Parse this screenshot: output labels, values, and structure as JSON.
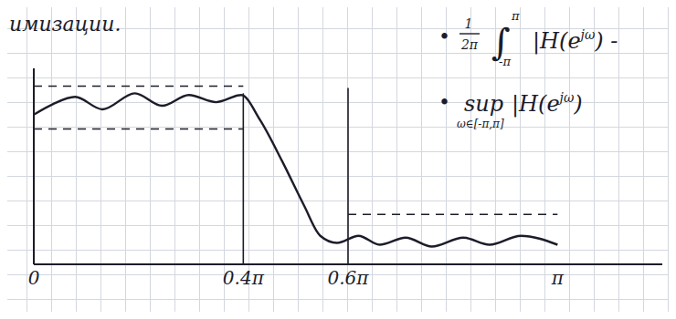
{
  "chart_data": {
    "type": "line",
    "title": "имизации.",
    "color": "#1c1c2a",
    "line_style": "solid",
    "tick_labels": "x",
    "x": [
      0,
      0.037,
      0.079,
      0.131,
      0.193,
      0.245,
      0.296,
      0.348,
      0.396,
      0.432,
      0.474,
      0.516,
      0.547,
      0.579,
      0.62,
      0.66,
      0.71,
      0.76,
      0.82,
      0.87,
      0.93,
      1.0
    ],
    "values": [
      0.84,
      0.9,
      0.94,
      0.87,
      0.96,
      0.89,
      0.95,
      0.91,
      0.95,
      0.81,
      0.58,
      0.33,
      0.16,
      0.12,
      0.16,
      0.11,
      0.15,
      0.1,
      0.15,
      0.11,
      0.16,
      0.11
    ],
    "xlim": [
      0,
      1.2
    ],
    "xticks": [
      0,
      {
        "value": 0.4,
        "label": "0.4π"
      },
      {
        "value": 0.6,
        "label": "0.6π"
      },
      {
        "value": 1,
        "label": "π"
      }
    ],
    "ylim": [
      0,
      1.1
    ],
    "yticks": [],
    "bounds": [
      {
        "x": [
          0,
          0.4
        ],
        "y": [
          1.0,
          1.0
        ],
        "line_style": "dashed"
      },
      {
        "x": [
          0,
          0.4
        ],
        "y": [
          0.76,
          0.76
        ],
        "line_style": "dashed"
      },
      {
        "x": [
          0.6,
          1.0
        ],
        "y": [
          0.28,
          0.28
        ],
        "line_style": "dashed"
      },
      {
        "x": [
          0.4,
          0.4
        ],
        "y": [
          0,
          0.96
        ],
        "line_style": "solid"
      },
      {
        "x": [
          0.6,
          0.6
        ],
        "y": [
          0,
          0.99
        ],
        "line_style": "solid"
      }
    ],
    "annotations": [
      {
        "bullet": "•",
        "fraction": [
          "1",
          "2π"
        ],
        "integral": "∫",
        "upper": "π",
        "lower": "-π",
        "text": "|H(e",
        "superscript": "jω",
        "tail": ") -"
      },
      {
        "bullet": "•",
        "operator": "sup",
        "subscript": "ω∈[-π,π]",
        "text": "|H(e",
        "superscript": "jω",
        "tail": ")"
      }
    ]
  }
}
